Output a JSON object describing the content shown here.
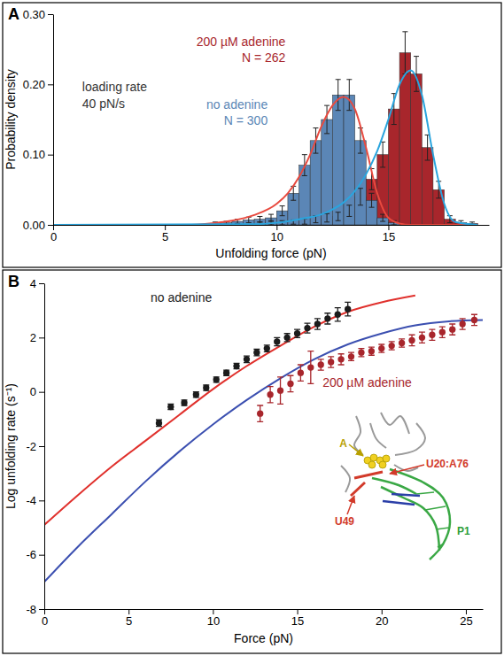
{
  "chart_data": [
    {
      "type": "histogram",
      "panel": "A",
      "xlabel": "Unfolding force (pN)",
      "ylabel": "Probability density",
      "annotations": [
        "loading rate",
        "40 pN/s"
      ],
      "bins": [
        7,
        7.5,
        8,
        8.5,
        9,
        9.5,
        10,
        10.5,
        11,
        11.5,
        12,
        12.5,
        13,
        13.5,
        14,
        14.5,
        15,
        15.5,
        16,
        16.5,
        17,
        17.5,
        18,
        18.5,
        19
      ],
      "series": [
        {
          "name": "200 µM adenine",
          "count_label": "N = 262",
          "color": "#a8262c",
          "values": [
            0,
            0,
            0,
            0,
            0.002,
            0.003,
            0.003,
            0.004,
            0.005,
            0.008,
            0.01,
            0.012,
            0.02,
            0.04,
            0.065,
            0.1,
            0.165,
            0.245,
            0.215,
            0.11,
            0.05,
            0.008,
            0.003,
            0.002
          ],
          "errors": [
            0,
            0,
            0,
            0,
            0.002,
            0.003,
            0.003,
            0.003,
            0.004,
            0.005,
            0.006,
            0.006,
            0.008,
            0.012,
            0.015,
            0.018,
            0.022,
            0.03,
            0.025,
            0.018,
            0.012,
            0.005,
            0.003,
            0.002
          ]
        },
        {
          "name": "no adenine",
          "count_label": "N = 300",
          "color": "#5b86b6",
          "values": [
            0.002,
            0.003,
            0.005,
            0.007,
            0.008,
            0.01,
            0.02,
            0.045,
            0.085,
            0.12,
            0.15,
            0.185,
            0.185,
            0.12,
            0.035,
            0.01,
            0.003,
            0,
            0,
            0,
            0,
            0,
            0,
            0
          ],
          "errors": [
            0.002,
            0.002,
            0.003,
            0.004,
            0.004,
            0.005,
            0.007,
            0.01,
            0.015,
            0.018,
            0.02,
            0.022,
            0.022,
            0.018,
            0.01,
            0.005,
            0.003,
            0,
            0,
            0,
            0,
            0,
            0,
            0
          ]
        }
      ],
      "fits": [
        {
          "color": "#e84a3f",
          "line_style": "solid",
          "x": [
            0,
            6,
            7,
            8,
            9,
            10,
            10.5,
            11,
            11.5,
            12,
            12.5,
            13,
            13.5,
            14,
            14.5,
            15,
            15.5,
            16,
            19
          ],
          "values": [
            0,
            0,
            0.002,
            0.006,
            0.014,
            0.03,
            0.045,
            0.068,
            0.1,
            0.14,
            0.17,
            0.182,
            0.165,
            0.11,
            0.045,
            0.01,
            0.002,
            0,
            0
          ]
        },
        {
          "color": "#2aa5de",
          "line_style": "solid",
          "x": [
            0,
            9,
            10,
            11,
            12,
            12.5,
            13,
            13.5,
            14,
            14.5,
            15,
            15.5,
            16,
            16.5,
            17,
            17.5,
            18,
            19
          ],
          "values": [
            0,
            0.001,
            0.003,
            0.008,
            0.015,
            0.022,
            0.032,
            0.048,
            0.072,
            0.105,
            0.15,
            0.2,
            0.22,
            0.185,
            0.1,
            0.03,
            0.004,
            0
          ]
        }
      ],
      "xlim": [
        0,
        19.5
      ],
      "xticks": [
        0,
        5,
        10,
        15
      ],
      "ylim": [
        0,
        0.3
      ],
      "yticks": [
        {
          "value": 0,
          "label": "0.00"
        },
        {
          "value": 0.1,
          "label": "0.10"
        },
        {
          "value": 0.2,
          "label": "0.20"
        },
        {
          "value": 0.3,
          "label": "0.30"
        }
      ]
    },
    {
      "type": "scatter",
      "panel": "B",
      "xlabel": "Force (pN)",
      "ylabel": "Log unfolding rate (s⁻¹)",
      "series": [
        {
          "name": "no adenine",
          "color": "#1c1c1c",
          "marker": "circle",
          "x": [
            6.8,
            7.5,
            8.3,
            9.0,
            9.6,
            10.2,
            10.8,
            11.4,
            12.0,
            12.6,
            13.2,
            13.8,
            14.4,
            15.0,
            15.6,
            16.2,
            16.8,
            17.4,
            18.0
          ],
          "values": [
            -1.15,
            -0.55,
            -0.4,
            -0.1,
            0.15,
            0.45,
            0.7,
            0.95,
            1.2,
            1.45,
            1.6,
            1.85,
            2.0,
            2.15,
            2.35,
            2.5,
            2.7,
            2.85,
            3.05
          ],
          "errors": [
            0.12,
            0.1,
            0.1,
            0.1,
            0.1,
            0.1,
            0.1,
            0.1,
            0.12,
            0.12,
            0.12,
            0.15,
            0.15,
            0.15,
            0.18,
            0.2,
            0.2,
            0.25,
            0.25
          ]
        },
        {
          "name": "200 µM adenine",
          "color": "#a8262c",
          "marker": "circle",
          "x": [
            12.8,
            13.4,
            14.0,
            14.6,
            15.2,
            15.8,
            16.4,
            17.0,
            17.6,
            18.2,
            18.8,
            19.4,
            20.0,
            20.6,
            21.2,
            21.8,
            22.4,
            23.0,
            23.6,
            24.2,
            24.8,
            25.5
          ],
          "values": [
            -0.8,
            -0.1,
            0.05,
            0.3,
            0.7,
            0.9,
            1.0,
            1.1,
            1.2,
            1.3,
            1.45,
            1.5,
            1.6,
            1.7,
            1.8,
            1.9,
            2.0,
            2.1,
            2.2,
            2.3,
            2.5,
            2.65
          ],
          "errors": [
            0.3,
            0.3,
            0.5,
            0.3,
            0.3,
            0.6,
            0.2,
            0.2,
            0.2,
            0.15,
            0.15,
            0.15,
            0.15,
            0.15,
            0.15,
            0.2,
            0.2,
            0.2,
            0.2,
            0.2,
            0.2,
            0.2
          ]
        }
      ],
      "fits": [
        {
          "color": "#e0302c",
          "line_style": "solid",
          "x": [
            0,
            2,
            4,
            6,
            8,
            10,
            12,
            14,
            16,
            18,
            20,
            22
          ],
          "values": [
            -4.9,
            -3.8,
            -2.75,
            -1.8,
            -0.85,
            0.1,
            0.95,
            1.7,
            2.4,
            2.95,
            3.3,
            3.55
          ]
        },
        {
          "color": "#3b4fb0",
          "line_style": "solid",
          "x": [
            0,
            2,
            4,
            6,
            8,
            10,
            12,
            14,
            16,
            18,
            20,
            22,
            24,
            26
          ],
          "values": [
            -7.0,
            -5.7,
            -4.5,
            -3.3,
            -2.2,
            -1.2,
            -0.3,
            0.5,
            1.2,
            1.75,
            2.15,
            2.45,
            2.6,
            2.65
          ]
        }
      ],
      "inset_labels": [
        "A",
        "U20:A76",
        "U49",
        "P1"
      ],
      "xlim": [
        0,
        26
      ],
      "xticks": [
        0,
        5,
        10,
        15,
        20,
        25
      ],
      "ylim": [
        -8,
        4
      ],
      "yticks": [
        -8,
        -6,
        -4,
        -2,
        0,
        2,
        4
      ]
    }
  ]
}
